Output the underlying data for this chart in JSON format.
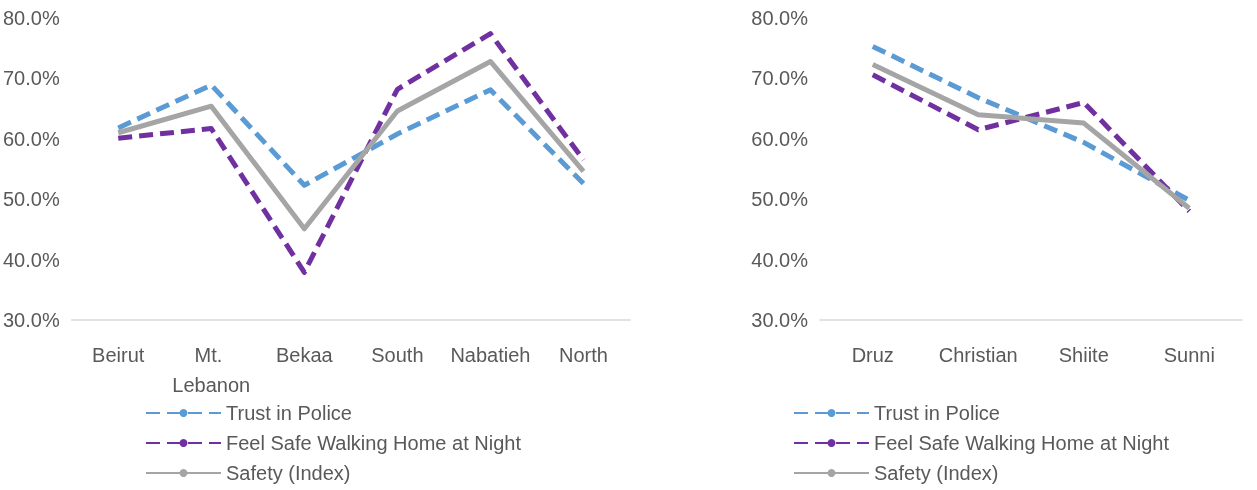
{
  "chart_data": [
    {
      "type": "line",
      "categories": [
        "Beirut",
        "Mt. Lebanon",
        "Bekaa",
        "South",
        "Nabatieh",
        "North"
      ],
      "series": [
        {
          "name": "Trust in Police",
          "color": "#5b9bd5",
          "line_style": "dashed",
          "values": [
            61.8,
            68.9,
            52.3,
            60.8,
            68.1,
            52.6
          ]
        },
        {
          "name": "Feel Safe Walking Home at Night",
          "color": "#7030a0",
          "line_style": "dashed",
          "values": [
            60.1,
            61.7,
            37.9,
            68.2,
            77.4,
            56.5
          ]
        },
        {
          "name": "Safety (Index)",
          "color": "#a5a5a5",
          "line_style": "solid",
          "values": [
            61.0,
            65.4,
            45.1,
            64.6,
            72.8,
            54.6
          ]
        }
      ],
      "ylim": [
        30,
        80
      ],
      "yticks": [
        {
          "value": 30,
          "label": "30.0%"
        },
        {
          "value": 40,
          "label": "40.0%"
        },
        {
          "value": 50,
          "label": "50.0%"
        },
        {
          "value": 60,
          "label": "60.0%"
        },
        {
          "value": 70,
          "label": "70.0%"
        },
        {
          "value": 80,
          "label": "80.0%"
        }
      ],
      "grid": false,
      "legend": "bottom left",
      "marker": "none"
    },
    {
      "type": "line",
      "categories": [
        "Druz",
        "Christian",
        "Shiite",
        "Sunni"
      ],
      "series": [
        {
          "name": "Trust in Police",
          "color": "#5b9bd5",
          "line_style": "dashed",
          "values": [
            75.3,
            66.8,
            59.4,
            49.8
          ]
        },
        {
          "name": "Feel Safe Walking Home at Night",
          "color": "#7030a0",
          "line_style": "dashed",
          "values": [
            70.6,
            61.5,
            66.0,
            48.0
          ]
        },
        {
          "name": "Safety (Index)",
          "color": "#a5a5a5",
          "line_style": "solid",
          "values": [
            72.3,
            64.0,
            62.6,
            48.5
          ]
        }
      ],
      "ylim": [
        30,
        80
      ],
      "yticks": [
        {
          "value": 30,
          "label": "30.0%"
        },
        {
          "value": 40,
          "label": "40.0%"
        },
        {
          "value": 50,
          "label": "50.0%"
        },
        {
          "value": 60,
          "label": "60.0%"
        },
        {
          "value": 70,
          "label": "70.0%"
        },
        {
          "value": 80,
          "label": "80.0%"
        }
      ],
      "grid": false,
      "legend": "bottom left",
      "marker": "none"
    }
  ]
}
